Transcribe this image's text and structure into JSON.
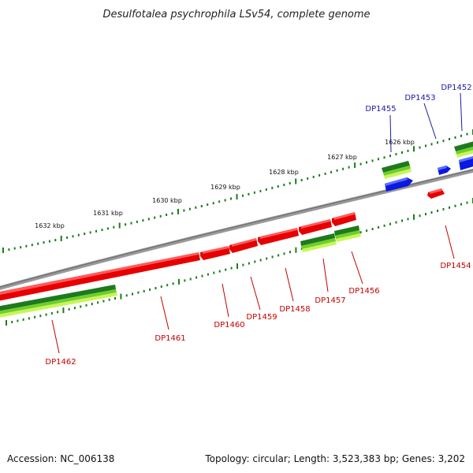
{
  "title": "Desulfotalea psychrophila LSv54, complete genome",
  "footer": {
    "accession": "Accession: NC_006138",
    "summary": "Topology: circular; Length: 3,523,383 bp; Genes: 3,202"
  },
  "ticks": [
    "1632 kbp",
    "1631 kbp",
    "1630 kbp",
    "1629 kbp",
    "1628 kbp",
    "1627 kbp",
    "1626 kbp"
  ],
  "genes_forward": [
    "DP1455",
    "DP1453",
    "DP1452"
  ],
  "genes_reverse": [
    "DP1462",
    "DP1461",
    "DP1460",
    "DP1459",
    "DP1458",
    "DP1457",
    "DP1456",
    "DP1454"
  ],
  "colors": {
    "forward_cds": "#0a18e0",
    "reverse_cds": "#e60000",
    "rna_dark": "#1e7a1e",
    "rna_light": "#b8f040",
    "backbone": "#8a8a8a",
    "tick": "#1e7a1e"
  }
}
